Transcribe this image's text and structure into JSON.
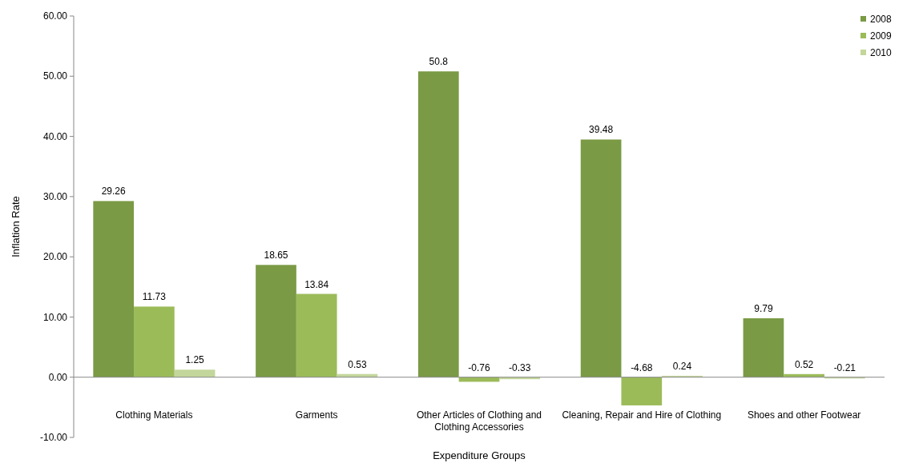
{
  "chart_data": {
    "type": "bar",
    "xlabel": "Expenditure Groups",
    "ylabel": "Inflation Rate",
    "categories": [
      "Clothing Materials",
      "Garments",
      "Other Articles of Clothing and Clothing Accessories",
      "Cleaning, Repair and Hire of Clothing",
      "Shoes and other Footwear"
    ],
    "series": [
      {
        "name": "2008",
        "color": "#7a9a45",
        "values": [
          29.26,
          18.65,
          50.8,
          39.48,
          9.79
        ]
      },
      {
        "name": "2009",
        "color": "#9bbb59",
        "values": [
          11.73,
          13.84,
          -0.76,
          -4.68,
          0.52
        ]
      },
      {
        "name": "2010",
        "color": "#c3d69b",
        "values": [
          1.25,
          0.53,
          -0.33,
          0.24,
          -0.21
        ]
      }
    ],
    "ylim": [
      -10,
      60
    ],
    "yticks": [
      {
        "value": -10,
        "label": "-10.00"
      },
      {
        "value": 0,
        "label": "0.00"
      },
      {
        "value": 10,
        "label": "10.00"
      },
      {
        "value": 20,
        "label": "20.00"
      },
      {
        "value": 30,
        "label": "30.00"
      },
      {
        "value": 40,
        "label": "40.00"
      },
      {
        "value": 50,
        "label": "50.00"
      },
      {
        "value": 60,
        "label": "60.00"
      }
    ],
    "data_labels": true,
    "legend": "top right"
  }
}
